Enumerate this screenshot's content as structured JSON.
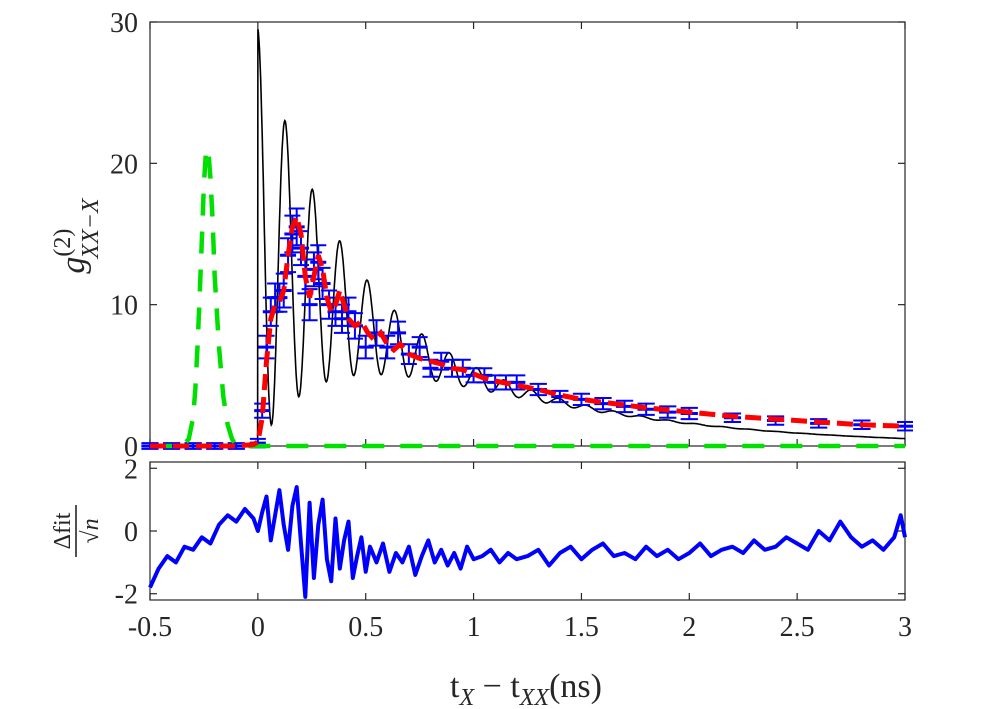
{
  "chart_data": [
    {
      "type": "line",
      "panel": "top",
      "title": "",
      "xlabel": "",
      "ylabel": "g^(2)_{XX-X}",
      "ylabel_parts": {
        "base": "g",
        "superscript": "(2)",
        "subscript": "XX−X"
      },
      "xlim": [
        -0.5,
        3
      ],
      "ylim": [
        0,
        30
      ],
      "yticks": [
        0,
        10,
        20,
        30
      ],
      "ytick_labels": [
        "0",
        "10",
        "20",
        "30"
      ],
      "grid": false,
      "legend": "none",
      "series": [
        {
          "name": "data",
          "color": "#0000ff",
          "style": "errorbar-steps",
          "x": [
            -0.5,
            -0.4,
            -0.3,
            -0.2,
            -0.1,
            0.0,
            0.02,
            0.04,
            0.06,
            0.08,
            0.1,
            0.12,
            0.14,
            0.16,
            0.18,
            0.2,
            0.22,
            0.24,
            0.26,
            0.28,
            0.3,
            0.33,
            0.36,
            0.39,
            0.42,
            0.45,
            0.5,
            0.55,
            0.6,
            0.65,
            0.7,
            0.75,
            0.8,
            0.85,
            0.9,
            0.95,
            1.0,
            1.05,
            1.1,
            1.15,
            1.2,
            1.3,
            1.4,
            1.5,
            1.6,
            1.7,
            1.8,
            1.9,
            2.0,
            2.2,
            2.4,
            2.6,
            2.8,
            3.0
          ],
          "y": [
            0.0,
            0.0,
            0.0,
            0.0,
            0.0,
            0.2,
            2.5,
            7.0,
            9.5,
            10.5,
            10.5,
            11.0,
            13.5,
            15.0,
            15.5,
            14.0,
            12.0,
            10.0,
            12.5,
            13.0,
            11.5,
            10.0,
            9.5,
            9.0,
            9.5,
            8.5,
            7.0,
            8.0,
            7.0,
            8.0,
            6.5,
            7.0,
            5.5,
            6.0,
            5.5,
            5.5,
            5.0,
            5.0,
            4.5,
            4.5,
            4.5,
            4.0,
            3.5,
            3.3,
            3.0,
            2.8,
            2.6,
            2.4,
            2.3,
            2.0,
            1.8,
            1.6,
            1.5,
            1.4
          ],
          "yerr": [
            0.2,
            0.2,
            0.2,
            0.2,
            0.2,
            0.3,
            0.5,
            0.8,
            1.0,
            1.0,
            1.0,
            1.2,
            1.2,
            1.3,
            1.3,
            1.2,
            1.2,
            1.1,
            1.2,
            1.2,
            1.1,
            1.0,
            1.0,
            1.0,
            1.0,
            0.9,
            0.8,
            0.9,
            0.8,
            0.8,
            0.7,
            0.7,
            0.6,
            0.6,
            0.6,
            0.6,
            0.5,
            0.5,
            0.5,
            0.5,
            0.5,
            0.4,
            0.4,
            0.4,
            0.4,
            0.4,
            0.4,
            0.4,
            0.4,
            0.3,
            0.3,
            0.3,
            0.3,
            0.3
          ]
        },
        {
          "name": "oscillating model",
          "color": "#000000",
          "style": "thin-line",
          "x_start": 0.0,
          "x_end": 3.0,
          "peak": 29.5,
          "decay_ns": 0.9,
          "period_ns": 0.127,
          "damping_ns": 0.55
        },
        {
          "name": "fit",
          "color": "#ff0000",
          "style": "thick-dash",
          "x": [
            -0.5,
            -0.3,
            -0.1,
            -0.02,
            0.0,
            0.02,
            0.04,
            0.06,
            0.08,
            0.1,
            0.12,
            0.14,
            0.16,
            0.18,
            0.2,
            0.22,
            0.24,
            0.26,
            0.28,
            0.3,
            0.32,
            0.34,
            0.36,
            0.38,
            0.4,
            0.42,
            0.45,
            0.48,
            0.51,
            0.54,
            0.57,
            0.6,
            0.63,
            0.66,
            0.7,
            0.75,
            0.8,
            0.85,
            0.9,
            0.95,
            1.0,
            1.05,
            1.1,
            1.2,
            1.3,
            1.4,
            1.5,
            1.6,
            1.8,
            2.0,
            2.2,
            2.4,
            2.6,
            2.8,
            3.0
          ],
          "y": [
            0.0,
            0.0,
            0.0,
            0.1,
            0.3,
            2.0,
            6.0,
            9.0,
            10.0,
            10.2,
            11.0,
            13.5,
            15.5,
            16.2,
            15.0,
            12.0,
            10.5,
            12.0,
            13.5,
            12.5,
            10.5,
            9.5,
            10.0,
            11.0,
            10.0,
            9.0,
            8.5,
            8.8,
            8.0,
            7.5,
            8.0,
            7.2,
            6.8,
            7.2,
            6.5,
            6.2,
            6.0,
            5.8,
            5.5,
            5.4,
            5.1,
            4.8,
            4.6,
            4.3,
            4.0,
            3.6,
            3.3,
            3.1,
            2.7,
            2.4,
            2.1,
            1.9,
            1.7,
            1.5,
            1.4
          ]
        },
        {
          "name": "reference pulse",
          "color": "#00e000",
          "style": "thick-dash",
          "x": [
            -0.5,
            -0.35,
            -0.32,
            -0.3,
            -0.29,
            -0.28,
            -0.27,
            -0.26,
            -0.25,
            -0.24,
            -0.23,
            -0.22,
            -0.21,
            -0.2,
            -0.18,
            -0.16,
            -0.14,
            -0.12,
            -0.1,
            0.0,
            3.0
          ],
          "y": [
            0.0,
            0.0,
            0.5,
            2.0,
            4.0,
            7.0,
            10.5,
            14.5,
            18.5,
            21.0,
            21.0,
            19.0,
            16.0,
            12.0,
            7.0,
            3.5,
            1.5,
            0.5,
            0.0,
            0.0,
            0.0
          ]
        }
      ]
    },
    {
      "type": "line",
      "panel": "bottom",
      "title": "",
      "xlabel": "t_X − t_XX (ns)",
      "xlabel_parts": {
        "t1": "t",
        "s1": "X",
        "minus": " − ",
        "t2": "t",
        "s2": "XX",
        "unit": "(ns)"
      },
      "ylabel": "Δfit / √n",
      "ylabel_parts": {
        "numerator": "Δfit",
        "denominator": "√n"
      },
      "xlim": [
        -0.5,
        3
      ],
      "ylim": [
        -2.2,
        2.2
      ],
      "xticks": [
        -0.5,
        0,
        0.5,
        1,
        1.5,
        2,
        2.5,
        3
      ],
      "xtick_labels": [
        "-0.5",
        "0",
        "0.5",
        "1",
        "1.5",
        "2",
        "2.5",
        "3"
      ],
      "yticks": [
        -2,
        0,
        2
      ],
      "ytick_labels": [
        "-2",
        "0",
        "2"
      ],
      "grid": false,
      "legend": "none",
      "series": [
        {
          "name": "residuals",
          "color": "#0000ff",
          "x": [
            -0.5,
            -0.46,
            -0.42,
            -0.38,
            -0.34,
            -0.3,
            -0.26,
            -0.22,
            -0.18,
            -0.14,
            -0.1,
            -0.06,
            -0.02,
            0.0,
            0.02,
            0.04,
            0.06,
            0.08,
            0.1,
            0.12,
            0.14,
            0.16,
            0.18,
            0.2,
            0.22,
            0.24,
            0.26,
            0.28,
            0.3,
            0.32,
            0.34,
            0.36,
            0.38,
            0.4,
            0.42,
            0.44,
            0.46,
            0.48,
            0.5,
            0.52,
            0.55,
            0.58,
            0.61,
            0.64,
            0.67,
            0.7,
            0.73,
            0.76,
            0.79,
            0.82,
            0.85,
            0.88,
            0.91,
            0.94,
            0.97,
            1.0,
            1.04,
            1.08,
            1.12,
            1.16,
            1.2,
            1.25,
            1.3,
            1.35,
            1.4,
            1.45,
            1.5,
            1.55,
            1.6,
            1.65,
            1.7,
            1.75,
            1.8,
            1.85,
            1.9,
            1.95,
            2.0,
            2.05,
            2.1,
            2.15,
            2.2,
            2.25,
            2.3,
            2.35,
            2.4,
            2.45,
            2.5,
            2.55,
            2.6,
            2.65,
            2.7,
            2.75,
            2.8,
            2.85,
            2.9,
            2.95,
            2.98,
            3.0
          ],
          "y": [
            -1.8,
            -1.2,
            -0.8,
            -1.0,
            -0.5,
            -0.6,
            -0.2,
            -0.4,
            0.2,
            0.5,
            0.3,
            0.7,
            0.4,
            0.0,
            0.6,
            1.1,
            -0.3,
            0.5,
            1.3,
            0.2,
            -0.6,
            0.8,
            1.4,
            -0.4,
            -2.1,
            0.9,
            -1.5,
            0.2,
            1.0,
            -0.9,
            -1.6,
            0.4,
            -1.2,
            -0.3,
            0.3,
            -1.5,
            -0.8,
            -0.2,
            -1.3,
            -0.5,
            -1.0,
            -0.4,
            -1.3,
            -0.7,
            -1.0,
            -0.5,
            -1.4,
            -0.8,
            -0.3,
            -1.0,
            -0.6,
            -1.1,
            -0.7,
            -1.2,
            -0.5,
            -0.9,
            -0.8,
            -0.6,
            -1.0,
            -0.7,
            -0.9,
            -0.8,
            -0.6,
            -1.1,
            -0.7,
            -0.5,
            -0.9,
            -0.6,
            -0.4,
            -0.8,
            -0.7,
            -0.9,
            -0.5,
            -0.8,
            -0.6,
            -0.9,
            -0.7,
            -0.4,
            -0.8,
            -0.6,
            -0.5,
            -0.7,
            -0.3,
            -0.6,
            -0.5,
            -0.2,
            -0.4,
            -0.6,
            0.0,
            -0.3,
            0.3,
            -0.2,
            -0.5,
            -0.3,
            -0.6,
            -0.2,
            0.5,
            -0.2
          ]
        }
      ]
    }
  ]
}
